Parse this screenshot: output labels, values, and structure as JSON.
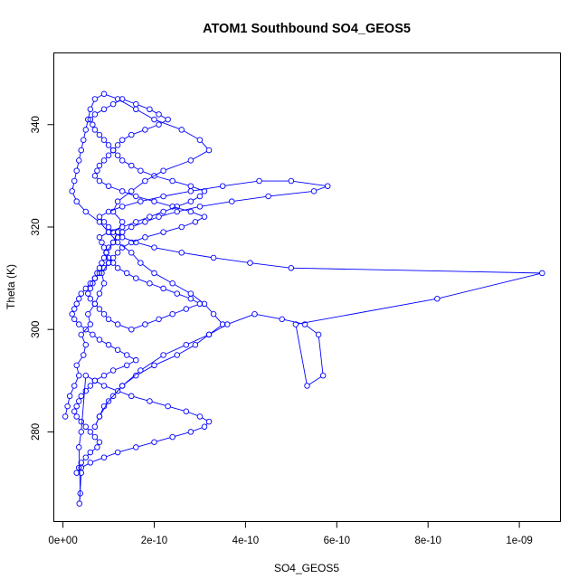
{
  "chart_data": {
    "type": "scatter",
    "mode": "lines+markers",
    "title": "ATOM1 Southbound SO4_GEOS5",
    "xlabel": "SO4_GEOS5",
    "ylabel": "Theta (K)",
    "xlim": [
      -2e-11,
      1.09e-09
    ],
    "ylim": [
      262.5,
      354
    ],
    "x_ticks": [
      {
        "value": 0,
        "label": "0e+00"
      },
      {
        "value": 2e-10,
        "label": "2e-10"
      },
      {
        "value": 4e-10,
        "label": "4e-10"
      },
      {
        "value": 6e-10,
        "label": "6e-10"
      },
      {
        "value": 8e-10,
        "label": "8e-10"
      },
      {
        "value": 1e-09,
        "label": "1e-09"
      }
    ],
    "y_ticks": [
      {
        "value": 280,
        "label": "280"
      },
      {
        "value": 300,
        "label": "300"
      },
      {
        "value": 320,
        "label": "320"
      },
      {
        "value": 340,
        "label": "340"
      }
    ],
    "grid": false,
    "legend": "none",
    "colors": {
      "series": "#0000ff",
      "axes": "#000000",
      "background": "#ffffff"
    },
    "series": [
      {
        "values_note_x_unit": "1e-10",
        "x": [
          0.05,
          0.1,
          0.15,
          0.25,
          0.35,
          0.3,
          0.45,
          0.5,
          0.4,
          0.6,
          0.55,
          0.7,
          0.8,
          0.9,
          0.85,
          1.0,
          0.95,
          1.1,
          1.2,
          1.3,
          1.1,
          1.2,
          1.5,
          1.8,
          2.2,
          2.8,
          3.2,
          3.0,
          2.6,
          2.0,
          1.6,
          1.2,
          0.9,
          0.7,
          0.6,
          0.55,
          0.5,
          0.45,
          0.4,
          0.35,
          0.3,
          0.25,
          0.2,
          0.3,
          0.5,
          0.8,
          1.0,
          1.2,
          1.5,
          1.7,
          2.0,
          2.4,
          2.8,
          3.1,
          3.3,
          3.5,
          3.2,
          2.9,
          2.5,
          2.0,
          1.6,
          1.3,
          1.1,
          0.9,
          0.8,
          0.7,
          0.8,
          1.0,
          1.3,
          1.7,
          2.2,
          2.7,
          3.2,
          3.6,
          4.2,
          4.8,
          5.3,
          5.6,
          5.7,
          5.35,
          5.1,
          8.2,
          10.5,
          5.0,
          4.1,
          3.3,
          2.6,
          2.0,
          1.6,
          1.3,
          1.1,
          1.0,
          0.9,
          0.8,
          1.0,
          1.3,
          1.7,
          2.2,
          2.8,
          3.5,
          4.3,
          5.0,
          5.8,
          5.5,
          4.5,
          3.7,
          3.0,
          2.5,
          2.1,
          1.8,
          1.5,
          1.3,
          1.2,
          1.1,
          1.0,
          0.95,
          0.9,
          0.85,
          0.8,
          0.75,
          0.7,
          0.65,
          0.6,
          0.55,
          0.6,
          0.7,
          0.8,
          0.9,
          1.0,
          1.2,
          1.5,
          1.8,
          2.1,
          2.4,
          2.7,
          3.0,
          2.8,
          2.5,
          2.2,
          1.9,
          1.6,
          1.4,
          1.2,
          1.1,
          1.0,
          0.95,
          0.9,
          0.85,
          0.8,
          1.0,
          1.3,
          1.6,
          1.9,
          2.2,
          2.5,
          2.8,
          3.0,
          3.1,
          2.8,
          2.4,
          2.0,
          1.7,
          1.5,
          1.3,
          1.2,
          1.1,
          1.0,
          0.9,
          0.8,
          0.7,
          0.65,
          0.6,
          0.7,
          0.9,
          1.1,
          1.3,
          1.6,
          1.9,
          2.1,
          2.3,
          2.1,
          1.8,
          1.5,
          1.3,
          1.2,
          1.1,
          1.0,
          0.9,
          0.8,
          0.75,
          0.7,
          0.8,
          1.0,
          1.3,
          1.6,
          2.0,
          2.4,
          2.8,
          3.1,
          2.9,
          2.6,
          2.2,
          1.8,
          1.5,
          1.3,
          1.2,
          1.1,
          1.0,
          0.9,
          0.8,
          0.7,
          0.6,
          0.5,
          0.4,
          0.35,
          0.3,
          0.25,
          0.2,
          0.25,
          0.35,
          0.5,
          0.65,
          0.8,
          1.0,
          1.2,
          1.4,
          1.6,
          1.4,
          1.1,
          0.9,
          0.7,
          0.6,
          0.5,
          0.4,
          0.35,
          0.3,
          0.25,
          0.3,
          0.4,
          0.5,
          0.6,
          0.7,
          0.8,
          0.75,
          0.6,
          0.5,
          0.4,
          0.35,
          0.3,
          0.4,
          0.6,
          0.9,
          1.2,
          1.6,
          2.0,
          2.4,
          2.8,
          3.1,
          3.2,
          3.0,
          2.7,
          2.3,
          1.9,
          1.5,
          1.2,
          0.9,
          0.7,
          0.5,
          0.4,
          0.35,
          0.38,
          0.36,
          0.4
        ],
        "y": [
          283,
          285,
          287,
          289,
          291,
          293,
          295,
          297,
          299,
          301,
          303,
          305,
          307,
          309,
          311,
          313,
          315,
          317,
          319,
          321,
          323,
          325,
          327,
          329,
          331,
          333,
          335,
          337,
          339,
          341,
          343,
          345,
          346,
          345,
          343,
          341,
          339,
          337,
          335,
          333,
          331,
          329,
          327,
          325,
          323,
          321,
          319,
          317,
          315,
          313,
          311,
          309,
          307,
          305,
          303,
          301,
          299,
          297,
          295,
          293,
          291,
          289,
          287,
          285,
          283,
          281,
          283,
          286,
          289,
          292,
          295,
          297,
          299,
          301,
          303,
          302,
          301,
          299,
          291,
          289,
          301,
          306,
          311,
          312,
          313,
          314,
          315,
          316,
          317,
          318,
          319,
          320,
          321,
          322,
          323,
          324,
          325,
          326,
          327,
          328,
          329,
          329,
          328,
          327,
          326,
          325,
          324,
          323,
          322,
          321,
          320,
          319,
          318,
          317,
          316,
          315,
          314,
          313,
          312,
          311,
          310,
          309,
          308,
          307,
          306,
          305,
          304,
          303,
          302,
          301,
          300,
          301,
          302,
          303,
          304,
          305,
          306,
          307,
          308,
          309,
          310,
          311,
          312,
          313,
          314,
          315,
          316,
          317,
          318,
          319,
          320,
          321,
          322,
          323,
          324,
          325,
          326,
          327,
          328,
          329,
          330,
          331,
          332,
          333,
          334,
          335,
          336,
          337,
          338,
          339,
          340,
          341,
          342,
          343,
          344,
          345,
          344,
          343,
          342,
          341,
          340,
          339,
          338,
          337,
          336,
          335,
          334,
          333,
          332,
          331,
          330,
          329,
          328,
          327,
          326,
          325,
          324,
          323,
          322,
          321,
          320,
          319,
          318,
          317,
          316,
          315,
          314,
          313,
          312,
          311,
          310,
          309,
          308,
          307,
          306,
          305,
          304,
          303,
          302,
          301,
          300,
          299,
          298,
          297,
          296,
          295,
          294,
          293,
          292,
          291,
          290,
          289,
          288,
          287,
          286,
          285,
          284,
          283,
          282,
          281,
          280,
          279,
          278,
          277,
          276,
          275,
          274,
          273,
          272,
          273,
          274,
          275,
          276,
          277,
          278,
          279,
          280,
          281,
          282,
          283,
          284,
          285,
          286,
          287,
          288,
          289,
          290,
          291,
          280,
          277,
          268,
          266,
          272
        ]
      }
    ]
  }
}
